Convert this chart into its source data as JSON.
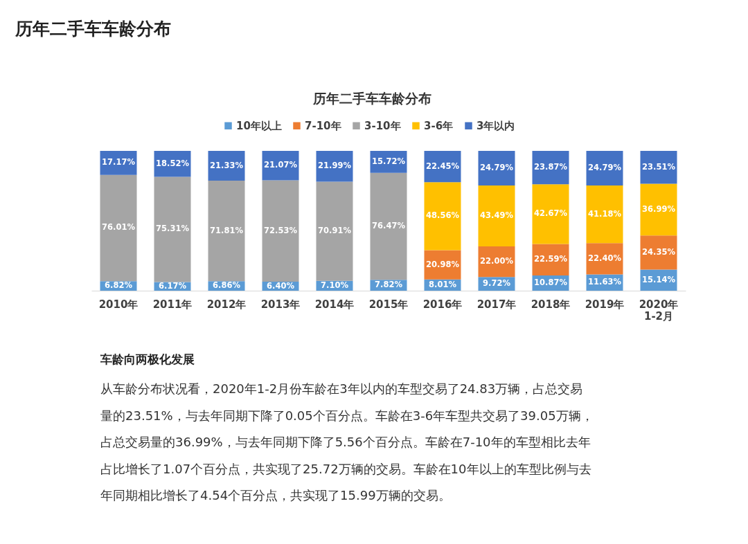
{
  "chart_data": {
    "type": "bar",
    "stacked": true,
    "title": "历年二手车车龄分布",
    "categories": [
      "2010年",
      "2011年",
      "2012年",
      "2013年",
      "2014年",
      "2015年",
      "2016年",
      "2017年",
      "2018年",
      "2019年",
      "2020年\n1-2月"
    ],
    "series": [
      {
        "name": "10年以上",
        "color": "#5b9bd5",
        "values": [
          6.82,
          6.17,
          6.86,
          6.4,
          7.1,
          7.82,
          8.01,
          9.72,
          10.87,
          11.63,
          15.14
        ],
        "value_labels": [
          "6.82%",
          "6.17%",
          "6.86%",
          "6.40%",
          "7.10%",
          "7.82%",
          "8.01%",
          "9.72%",
          "10.87%",
          "11.63%",
          "15.14%"
        ]
      },
      {
        "name": "7-10年",
        "color": "#ed7d31",
        "values": [
          null,
          null,
          null,
          null,
          null,
          null,
          20.98,
          22.0,
          22.59,
          22.4,
          24.35
        ],
        "value_labels": [
          null,
          null,
          null,
          null,
          null,
          null,
          "20.98%",
          "22.00%",
          "22.59%",
          "22.40%",
          "24.35%"
        ]
      },
      {
        "name": "3-10年",
        "color": "#a5a5a5",
        "values": [
          76.01,
          75.31,
          71.81,
          72.53,
          70.91,
          76.47,
          null,
          null,
          null,
          null,
          null
        ],
        "value_labels": [
          "76.01%",
          "75.31%",
          "71.81%",
          "72.53%",
          "70.91%",
          "76.47%",
          null,
          null,
          null,
          null,
          null
        ]
      },
      {
        "name": "3-6年",
        "color": "#ffc000",
        "values": [
          null,
          null,
          null,
          null,
          null,
          null,
          48.56,
          43.49,
          42.67,
          41.18,
          36.99
        ],
        "value_labels": [
          null,
          null,
          null,
          null,
          null,
          null,
          "48.56%",
          "43.49%",
          "42.67%",
          "41.18%",
          "36.99%"
        ]
      },
      {
        "name": "3年以内",
        "color": "#4472c4",
        "values": [
          17.17,
          18.52,
          21.33,
          21.07,
          21.99,
          15.72,
          22.45,
          24.79,
          23.87,
          24.79,
          23.51
        ],
        "value_labels": [
          "17.17%",
          "18.52%",
          "21.33%",
          "21.07%",
          "21.99%",
          "15.72%",
          "22.45%",
          "24.79%",
          "23.87%",
          "24.79%",
          "23.51%"
        ]
      }
    ],
    "tick_labels": "x",
    "grid": false,
    "legend": "top",
    "annotations": [
      "历年二手车车龄分布",
      "车龄向两极化发展",
      "从车龄分布状况看，2020年1-2月份车龄在3年以内的车型交易了24.83万辆，占总交易",
      "量的23.51%，与去年同期下降了0.05个百分点。车龄在3-6年车型共交易了39.05万辆，",
      "占总交易量的36.99%，与去年同期下降了5.56个百分点。车龄在7-10年的车型相比去年",
      "占比增长了1.07个百分点，共实现了25.72万辆的交易。车龄在10年以上的车型比例与去",
      "年同期相比增长了4.54个百分点，共实现了15.99万辆的交易。"
    ]
  }
}
